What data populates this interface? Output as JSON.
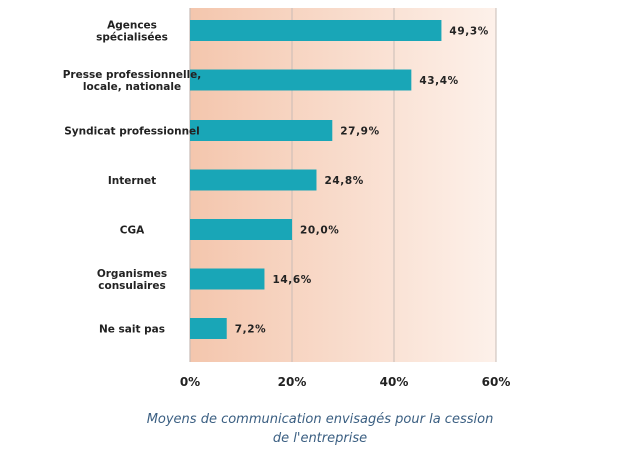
{
  "chart_data": {
    "type": "bar",
    "orientation": "horizontal",
    "categories": [
      [
        "Agences",
        "spécialisées"
      ],
      [
        "Presse professionnelle,",
        "locale, nationale"
      ],
      [
        "Syndicat professionnel"
      ],
      [
        "Internet"
      ],
      [
        "CGA"
      ],
      [
        "Organismes",
        "consulaires"
      ],
      [
        "Ne sait pas"
      ]
    ],
    "values": [
      49.3,
      43.4,
      27.9,
      24.8,
      20.0,
      14.6,
      7.2
    ],
    "value_labels": [
      "49,3%",
      "43,4%",
      "27,9%",
      "24,8%",
      "20,0%",
      "14,6%",
      "7,2%"
    ],
    "xlim": [
      0,
      60
    ],
    "xticks": [
      0,
      20,
      40,
      60
    ],
    "xtick_labels": [
      "0%",
      "20%",
      "40%",
      "60%"
    ],
    "grid": true,
    "title": "Moyens de communication envisagés pour la cession de l'entreprise",
    "caption_lines": [
      "Moyens de communication envisagés pour la cession",
      "de l'entreprise"
    ],
    "colors": {
      "bar": "#19a6b7",
      "plot_bg_left": "#f4c6ad",
      "plot_bg_right": "#fdf1ea",
      "grid": "#c8bcb6",
      "caption": "#3b5f82"
    }
  }
}
